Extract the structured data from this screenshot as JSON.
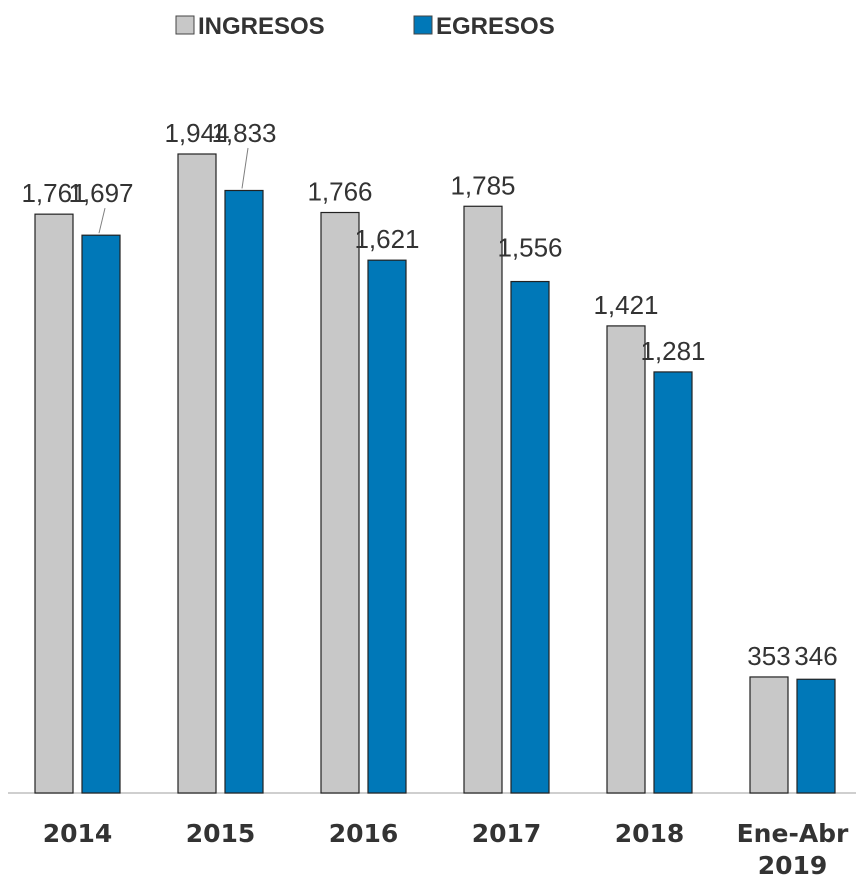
{
  "chart_data": {
    "type": "bar",
    "categories": [
      [
        "2014"
      ],
      [
        "2015"
      ],
      [
        "2016"
      ],
      [
        "2017"
      ],
      [
        "2018"
      ],
      [
        "Ene-Abr",
        "2019"
      ]
    ],
    "series": [
      {
        "name": "INGRESOS",
        "values": [
          1761,
          1944,
          1766,
          1785,
          1421,
          353
        ],
        "labels": [
          "1,761",
          "1,944",
          "1,766",
          "1,785",
          "1,421",
          "353"
        ],
        "color": "#c8c8c8"
      },
      {
        "name": "EGRESOS",
        "values": [
          1697,
          1833,
          1621,
          1556,
          1281,
          346
        ],
        "labels": [
          "1,697",
          "1,833",
          "1,621",
          "1,556",
          "1,281",
          "346"
        ],
        "color": "#0078b8"
      }
    ],
    "title": "",
    "xlabel": "",
    "ylabel": "",
    "ylim": [
      0,
      2100
    ],
    "grid": false,
    "legend": "top-center"
  }
}
